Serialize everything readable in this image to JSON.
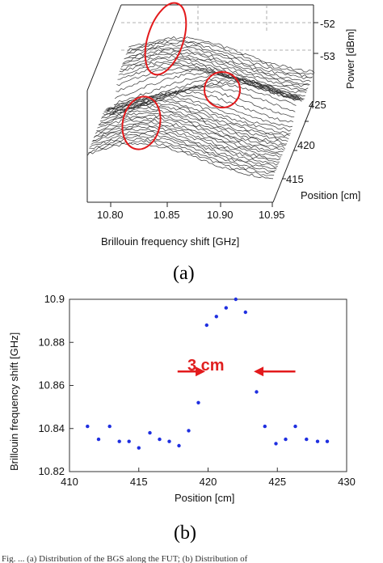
{
  "caption_fragment": "Fig. ... (a) Distribution of the BGS along the FUT; (b) Distribution of",
  "chart_data": [
    {
      "panel": "(a)",
      "type": "line",
      "projection": "3d-waterfall",
      "xlabel": "Brillouin frequency shift [GHz]",
      "ylabel": "Position [cm]",
      "zlabel": "Power [dBm]",
      "xticks": [
        "10.80",
        "10.85",
        "10.90",
        "10.95"
      ],
      "yticks": [
        "415",
        "420",
        "425"
      ],
      "zticks": [
        "-52",
        "-53"
      ],
      "xlim": [
        10.8,
        10.95
      ],
      "ylim": [
        412,
        428
      ],
      "zlim": [
        -55,
        -51.6
      ],
      "grid": true,
      "highlight_color": "#e31a1c",
      "trace_color": "#333333",
      "highlights": [
        {
          "x": 10.865,
          "y": 423,
          "note": "peak-top"
        },
        {
          "x": 10.908,
          "y": 423,
          "note": "right-bulge"
        },
        {
          "x": 10.845,
          "y": 418,
          "note": "left-cluster"
        }
      ]
    },
    {
      "panel": "(b)",
      "type": "scatter",
      "xlabel": "Position [cm]",
      "ylabel": "Brillouin frequency shift [GHz]",
      "xticks": [
        "410",
        "415",
        "420",
        "425",
        "430"
      ],
      "yticks": [
        "10.82",
        "10.84",
        "10.86",
        "10.88",
        "10.9"
      ],
      "xlim": [
        410,
        430
      ],
      "ylim": [
        10.82,
        10.9
      ],
      "point_color": "#1f2fe0",
      "grid": false,
      "x": [
        411.3,
        412.1,
        412.9,
        413.6,
        414.3,
        415.0,
        415.8,
        416.5,
        417.2,
        417.9,
        418.6,
        419.3,
        419.9,
        420.6,
        421.3,
        422.0,
        422.7,
        423.5,
        424.1,
        424.9,
        425.6,
        426.3,
        427.1,
        427.9,
        428.6
      ],
      "y": [
        10.841,
        10.835,
        10.841,
        10.834,
        10.834,
        10.831,
        10.838,
        10.835,
        10.834,
        10.832,
        10.839,
        10.852,
        10.888,
        10.892,
        10.896,
        10.9,
        10.894,
        10.857,
        10.841,
        10.833,
        10.835,
        10.841,
        10.835,
        10.834,
        10.834
      ],
      "annotation": {
        "text": "3 cm",
        "color": "#e31a1c",
        "left_arrow_x": [
          417.8,
          419.8
        ],
        "right_arrow_x": [
          423.3,
          426.3
        ],
        "arrow_y": 10.8665
      }
    }
  ]
}
